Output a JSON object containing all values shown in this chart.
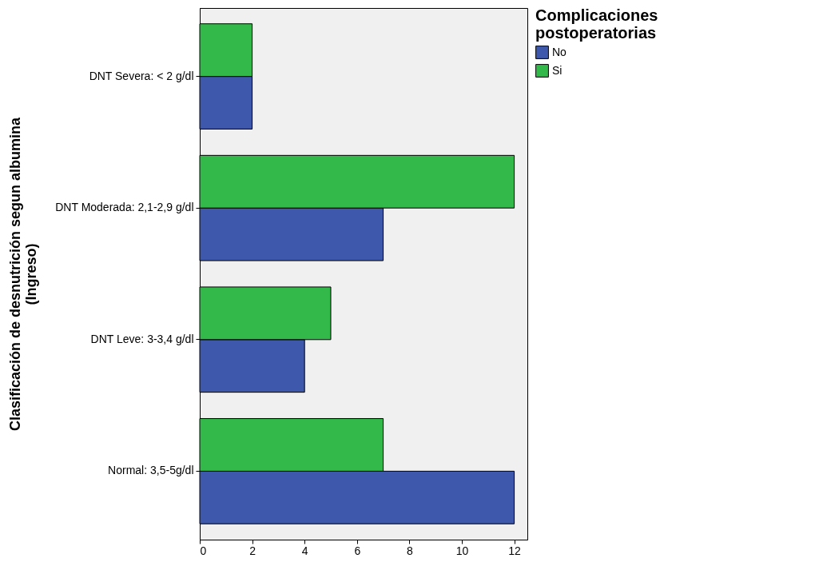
{
  "chart_data": {
    "type": "bar",
    "orientation": "horizontal",
    "ylabel": "Clasificación de desnutrición segun albumina (Ingreso)",
    "legend_title": "Complicaciones postoperatorias",
    "categories": [
      "DNT Severa: < 2 g/dl",
      "DNT Moderada: 2,1-2,9 g/dl",
      "DNT Leve: 3-3,4 g/dl",
      "Normal: 3,5-5g/dl"
    ],
    "series": [
      {
        "name": "No",
        "color": "#3e58ac",
        "values": [
          2,
          7,
          4,
          12
        ]
      },
      {
        "name": "Si",
        "color": "#33b94a",
        "values": [
          2,
          12,
          5,
          7
        ]
      }
    ],
    "xlim": [
      0,
      12.5
    ],
    "xticks": [
      0,
      2,
      4,
      6,
      8,
      10,
      12
    ],
    "grid": false,
    "legend": "top right"
  }
}
